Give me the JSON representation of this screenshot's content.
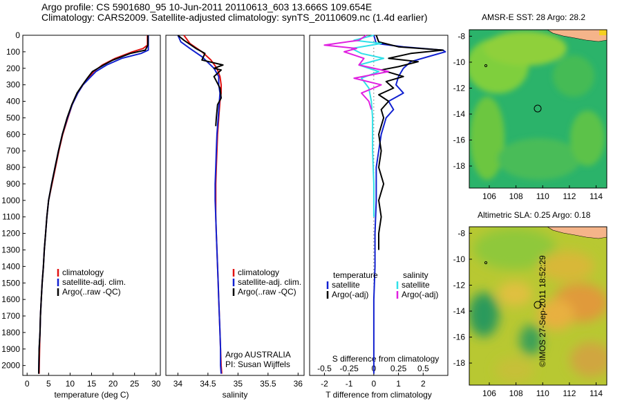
{
  "header": {
    "line1": "Argo profile: CS 5901680_95 10-Jun-2011 20110613_603 13.666S 109.654E",
    "line2": "Climatology: CARS2009. Satellite-adjusted climatology: synTS_20110609.nc (1.4d earlier)"
  },
  "map_titles": {
    "sst": "AMSR-E SST: 28 Argo: 28.2",
    "sla": "Altimetric SLA: 0.25 Argo: 0.18"
  },
  "footer_stamp": "©IMOS 27-Sep-2011 18:52:29",
  "credit": {
    "line1": "Argo AUSTRALIA",
    "line2": "PI: Susan Wijffels"
  },
  "colors": {
    "climatology": "#e01010",
    "satellite_adj": "#1020d0",
    "argo": "#000000",
    "sat_salinity": "#30e0e8",
    "argo_salinity": "#e020e0",
    "land": "#f5b48a"
  },
  "chart_data": [
    {
      "type": "line",
      "panel": "temperature",
      "xlabel": "temperature (deg C)",
      "ylabel": "",
      "xlim": [
        -1,
        31
      ],
      "ylim": [
        2060,
        0
      ],
      "xticks": [
        0,
        5,
        10,
        15,
        20,
        25,
        30
      ],
      "yticks": [
        0,
        100,
        200,
        300,
        400,
        500,
        600,
        700,
        800,
        900,
        1000,
        1100,
        1200,
        1300,
        1400,
        1500,
        1600,
        1700,
        1800,
        1900,
        2000
      ],
      "legend": [
        "climatology",
        "satellite-adj. clim.",
        "Argo(..raw -QC)"
      ],
      "series": [
        {
          "name": "climatology",
          "color_key": "climatology",
          "x": [
            28.0,
            28.0,
            27.0,
            24.5,
            20.5,
            17.5,
            15.5,
            14.2,
            13.0,
            11.8,
            10.5,
            9.5,
            8.3,
            7.4,
            6.6,
            5.8,
            5.0,
            4.6,
            4.3,
            4.0,
            3.8,
            3.5,
            3.3,
            3.1,
            3.0,
            2.9,
            2.8
          ],
          "y": [
            0,
            60,
            80,
            100,
            140,
            180,
            220,
            260,
            300,
            350,
            420,
            500,
            600,
            700,
            800,
            900,
            1000,
            1100,
            1200,
            1300,
            1400,
            1500,
            1600,
            1700,
            1800,
            1900,
            2050
          ]
        },
        {
          "name": "satellite-adj. clim.",
          "color_key": "satellite_adj",
          "x": [
            28.2,
            28.2,
            28.2,
            26.5,
            22.0,
            18.5,
            16.0,
            14.5,
            13.0,
            11.8,
            10.5,
            9.4,
            8.2,
            7.3,
            6.5,
            5.7,
            5.0,
            4.6,
            4.3,
            4.0,
            3.8,
            3.5,
            3.3,
            3.1,
            3.0,
            2.8,
            2.7
          ],
          "y": [
            0,
            60,
            90,
            110,
            140,
            180,
            220,
            260,
            300,
            350,
            420,
            500,
            600,
            700,
            800,
            900,
            1000,
            1100,
            1200,
            1300,
            1400,
            1500,
            1600,
            1700,
            1800,
            1900,
            2050
          ]
        },
        {
          "name": "Argo(..raw -QC)",
          "color_key": "argo",
          "x": [
            28.1,
            28.1,
            27.5,
            24.0,
            20.0,
            17.8,
            15.2,
            14.0,
            12.9,
            11.6,
            10.4,
            9.3,
            8.2,
            7.3,
            6.5,
            5.7,
            5.0,
            4.6,
            4.3,
            4.0,
            3.8,
            3.5,
            3.3,
            3.1,
            3.0,
            2.8,
            2.7
          ],
          "y": [
            0,
            60,
            90,
            110,
            150,
            180,
            220,
            260,
            300,
            350,
            420,
            500,
            600,
            700,
            800,
            900,
            1000,
            1100,
            1200,
            1300,
            1400,
            1500,
            1600,
            1700,
            1800,
            1900,
            2050
          ]
        }
      ]
    },
    {
      "type": "line",
      "panel": "salinity",
      "xlabel": "salinity",
      "ylabel": "",
      "xlim": [
        33.8,
        36.1
      ],
      "ylim": [
        2060,
        0
      ],
      "xticks": [
        34,
        34.5,
        35,
        35.5,
        36
      ],
      "legend": [
        "climatology",
        "satellite-adj. clim.",
        "Argo(..raw -QC)"
      ],
      "series": [
        {
          "name": "climatology",
          "color_key": "climatology",
          "x": [
            34.1,
            34.2,
            34.4,
            34.55,
            34.65,
            34.7,
            34.72,
            34.72,
            34.7,
            34.68,
            34.66,
            34.65,
            34.64,
            34.63,
            34.63,
            34.63,
            34.64,
            34.65,
            34.66,
            34.67,
            34.68,
            34.69,
            34.7,
            34.71,
            34.72,
            34.73
          ],
          "y": [
            0,
            50,
            100,
            150,
            200,
            250,
            300,
            350,
            400,
            500,
            600,
            700,
            800,
            900,
            1000,
            1100,
            1200,
            1300,
            1400,
            1500,
            1600,
            1700,
            1800,
            1900,
            2000,
            2050
          ]
        },
        {
          "name": "satellite-adj. clim.",
          "color_key": "satellite_adj",
          "x": [
            34.0,
            34.05,
            34.2,
            34.4,
            34.6,
            34.68,
            34.68,
            34.7,
            34.69,
            34.67,
            34.65,
            34.64,
            34.63,
            34.62,
            34.62,
            34.63,
            34.64,
            34.65,
            34.66,
            34.67,
            34.68,
            34.69,
            34.7,
            34.71,
            34.71,
            34.72
          ],
          "y": [
            0,
            40,
            80,
            130,
            200,
            250,
            300,
            350,
            400,
            500,
            600,
            700,
            800,
            900,
            1000,
            1100,
            1200,
            1300,
            1400,
            1500,
            1600,
            1700,
            1800,
            1900,
            2000,
            2050
          ]
        },
        {
          "name": "Argo(..raw -QC)",
          "color_key": "argo",
          "x": [
            34.0,
            34.1,
            34.3,
            34.45,
            34.4,
            34.75,
            34.6,
            34.72,
            34.6,
            34.7,
            34.72,
            34.66,
            34.64,
            34.63
          ],
          "y": [
            0,
            30,
            80,
            110,
            150,
            180,
            200,
            210,
            250,
            320,
            380,
            420,
            500,
            550
          ]
        }
      ]
    },
    {
      "type": "line",
      "panel": "difference",
      "xlabel": "T difference from climatology",
      "xlabel_top": "S difference from climatology",
      "xlim": [
        -2.6,
        3.0
      ],
      "ylim": [
        2060,
        0
      ],
      "xticks_bottom": [
        -2,
        -1,
        0,
        1,
        2
      ],
      "xticks_top": [
        -0.5,
        -0.25,
        0,
        0.25,
        0.5
      ],
      "legend": {
        "temperature": [
          "satellite",
          "Argo(-adj)"
        ],
        "salinity": [
          "satellite",
          "Argo(-adj)"
        ],
        "headers": [
          "temperature",
          "salinity"
        ]
      },
      "series": [
        {
          "name": "satellite",
          "group": "temperature",
          "color_key": "satellite_adj",
          "x": [
            0.0,
            0.1,
            1.2,
            2.8,
            2.9,
            2.2,
            1.5,
            1.2,
            1.0,
            0.9,
            1.2,
            0.6,
            0.8,
            0.5,
            0.3,
            0.2,
            0.1,
            0.1,
            0.05,
            0.05,
            0.0,
            0.0,
            0.0
          ],
          "y": [
            0,
            50,
            70,
            90,
            100,
            130,
            160,
            200,
            250,
            300,
            350,
            400,
            450,
            500,
            600,
            700,
            800,
            1000,
            1200,
            1400,
            1600,
            1800,
            2050
          ]
        },
        {
          "name": "Argo(-adj)",
          "group": "temperature",
          "color_key": "argo",
          "x": [
            0.1,
            0.2,
            1.0,
            2.8,
            1.5,
            0.6,
            1.8,
            1.0,
            0.3,
            1.2,
            0.5,
            0.8,
            0.2,
            0.6,
            0.3,
            0.4,
            0.2,
            0.3,
            0.2,
            0.4,
            0.2,
            0.3,
            0.2,
            0.2
          ],
          "y": [
            0,
            40,
            70,
            90,
            110,
            140,
            160,
            190,
            210,
            250,
            280,
            320,
            360,
            400,
            450,
            500,
            600,
            700,
            800,
            900,
            1000,
            1100,
            1200,
            1300
          ]
        },
        {
          "name": "satellite",
          "group": "salinity",
          "color_key": "sat_salinity",
          "x": [
            0.0,
            -0.8,
            0.3,
            -0.9,
            -0.5,
            0.4,
            -0.6,
            0.2,
            -0.5,
            -0.2,
            -0.1,
            -0.05,
            -0.05,
            0.0,
            0.0
          ],
          "y": [
            0,
            30,
            50,
            80,
            110,
            140,
            180,
            220,
            260,
            320,
            400,
            500,
            700,
            900,
            1100
          ]
        },
        {
          "name": "Argo(-adj)",
          "group": "salinity",
          "color_key": "argo_salinity",
          "x": [
            -0.3,
            -0.6,
            -2.0,
            -0.7,
            -1.2,
            -0.4,
            -0.6,
            0.6,
            -0.8,
            0.3,
            -0.5,
            -0.2,
            -0.1
          ],
          "y": [
            0,
            30,
            60,
            80,
            100,
            140,
            180,
            220,
            260,
            300,
            350,
            400,
            450
          ]
        }
      ]
    },
    {
      "type": "heatmap",
      "panel": "sst_map",
      "title": "AMSR-E SST: 28 Argo: 28.2",
      "xlim": [
        104.5,
        114.8
      ],
      "ylim": [
        -19.7,
        -7.5
      ],
      "xticks": [
        106,
        108,
        110,
        112,
        114
      ],
      "yticks": [
        -8,
        -10,
        -12,
        -14,
        -16,
        -18
      ],
      "argo_position": {
        "lon": 109.654,
        "lat": -13.666
      }
    },
    {
      "type": "heatmap",
      "panel": "sla_map",
      "title": "Altimetric SLA: 0.25 Argo: 0.18",
      "xlim": [
        104.5,
        114.8
      ],
      "ylim": [
        -19.7,
        -7.5
      ],
      "xticks": [
        106,
        108,
        110,
        112,
        114
      ],
      "yticks": [
        -8,
        -10,
        -12,
        -14,
        -16,
        -18
      ],
      "argo_position": {
        "lon": 109.654,
        "lat": -13.666
      }
    }
  ]
}
